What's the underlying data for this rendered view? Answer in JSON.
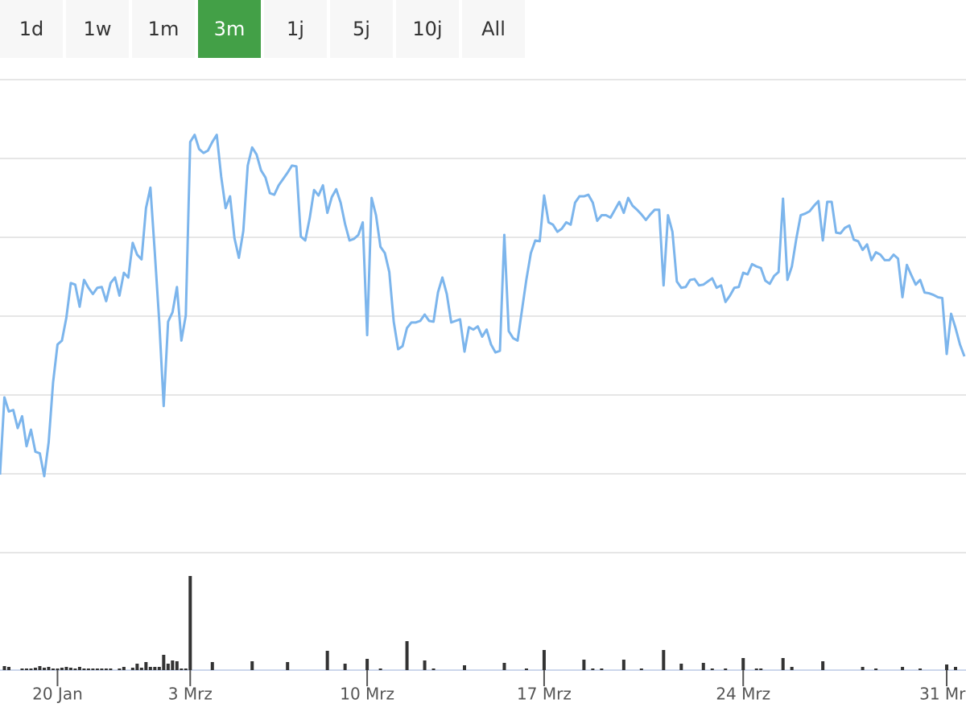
{
  "buttons": [
    {
      "label": "1d",
      "active": false
    },
    {
      "label": "1w",
      "active": false
    },
    {
      "label": "1m",
      "active": false
    },
    {
      "label": "3m",
      "active": true
    },
    {
      "label": "1j",
      "active": false
    },
    {
      "label": "5j",
      "active": false
    },
    {
      "label": "10j",
      "active": false
    },
    {
      "label": "All",
      "active": false
    }
  ],
  "chart_data": [
    {
      "type": "line",
      "xlim": [
        0,
        218
      ],
      "ylim": [
        0,
        6
      ],
      "yticks": [
        0,
        1,
        2,
        3,
        4,
        5,
        6
      ],
      "grid": true,
      "xticks": [
        {
          "value": 13,
          "label": "20 Jan"
        },
        {
          "value": 43,
          "label": "3 Mrz"
        },
        {
          "value": 83,
          "label": "10 Mrz"
        },
        {
          "value": 123,
          "label": "17 Mrz"
        },
        {
          "value": 168,
          "label": "24 Mrz"
        },
        {
          "value": 214,
          "label": "31 Mrz"
        }
      ],
      "series": [
        {
          "color": "#7cb5ec",
          "values": [
            0.99,
            1.97,
            1.79,
            1.81,
            1.58,
            1.73,
            1.35,
            1.56,
            1.28,
            1.26,
            0.97,
            1.4,
            2.16,
            2.64,
            2.69,
            2.98,
            3.42,
            3.4,
            3.12,
            3.46,
            3.36,
            3.28,
            3.36,
            3.37,
            3.19,
            3.42,
            3.49,
            3.26,
            3.55,
            3.49,
            3.93,
            3.78,
            3.72,
            4.37,
            4.63,
            3.8,
            2.93,
            1.86,
            2.93,
            3.05,
            3.37,
            2.69,
            3.01,
            5.21,
            5.3,
            5.12,
            5.07,
            5.1,
            5.21,
            5.3,
            4.77,
            4.37,
            4.52,
            3.99,
            3.74,
            4.08,
            4.91,
            5.14,
            5.05,
            4.85,
            4.76,
            4.56,
            4.54,
            4.66,
            4.74,
            4.82,
            4.91,
            4.9,
            4.01,
            3.96,
            4.24,
            4.6,
            4.53,
            4.66,
            4.31,
            4.51,
            4.61,
            4.44,
            4.17,
            3.96,
            3.98,
            4.03,
            4.19,
            2.76,
            4.5,
            4.28,
            3.88,
            3.8,
            3.56,
            2.93,
            2.58,
            2.62,
            2.85,
            2.92,
            2.92,
            2.94,
            3.02,
            2.94,
            2.93,
            3.3,
            3.49,
            3.28,
            2.92,
            2.94,
            2.96,
            2.55,
            2.86,
            2.83,
            2.87,
            2.74,
            2.83,
            2.64,
            2.54,
            2.56,
            4.03,
            2.81,
            2.72,
            2.69,
            3.08,
            3.47,
            3.8,
            3.96,
            3.95,
            4.53,
            4.19,
            4.16,
            4.07,
            4.11,
            4.19,
            4.16,
            4.44,
            4.52,
            4.52,
            4.54,
            4.44,
            4.21,
            4.28,
            4.28,
            4.25,
            4.35,
            4.45,
            4.31,
            4.5,
            4.4,
            4.35,
            4.29,
            4.22,
            4.29,
            4.35,
            4.35,
            3.39,
            4.28,
            4.07,
            3.44,
            3.36,
            3.37,
            3.46,
            3.47,
            3.39,
            3.4,
            3.44,
            3.48,
            3.36,
            3.39,
            3.18,
            3.26,
            3.36,
            3.37,
            3.55,
            3.53,
            3.66,
            3.63,
            3.61,
            3.45,
            3.41,
            3.51,
            3.56,
            4.49,
            3.46,
            3.63,
            3.98,
            4.28,
            4.3,
            4.33,
            4.4,
            4.46,
            3.96,
            4.45,
            4.45,
            4.06,
            4.05,
            4.12,
            4.15,
            3.97,
            3.95,
            3.84,
            3.91,
            3.71,
            3.81,
            3.78,
            3.71,
            3.71,
            3.78,
            3.73,
            3.24,
            3.65,
            3.52,
            3.4,
            3.46,
            3.3,
            3.29,
            3.27,
            3.24,
            3.23,
            2.52,
            3.03,
            2.85,
            2.64,
            2.49
          ]
        }
      ]
    },
    {
      "type": "bar",
      "color": "#333333",
      "xlim": [
        0,
        218
      ],
      "ylim": [
        0,
        120
      ],
      "x": [
        1,
        2,
        5,
        6,
        7,
        8,
        9,
        10,
        11,
        12,
        13,
        14,
        15,
        16,
        17,
        18,
        19,
        20,
        21,
        22,
        23,
        24,
        25,
        27,
        28,
        30,
        31,
        32,
        33,
        34,
        35,
        36,
        37,
        38,
        39,
        40,
        41,
        42,
        43,
        48,
        57,
        65,
        74,
        78,
        83,
        86,
        92,
        96,
        98,
        105,
        114,
        119,
        123,
        132,
        134,
        136,
        141,
        145,
        150,
        154,
        159,
        161,
        164,
        168,
        171,
        172,
        177,
        179,
        186,
        195,
        198,
        204,
        208,
        214,
        216
      ],
      "values": [
        5,
        4,
        2,
        2,
        2,
        3,
        5,
        3,
        4,
        2,
        2,
        3,
        4,
        3,
        2,
        4,
        2,
        2,
        2,
        2,
        2,
        2,
        2,
        2,
        4,
        3,
        8,
        3,
        10,
        4,
        4,
        4,
        19,
        8,
        12,
        11,
        2,
        2,
        117,
        10,
        11,
        10,
        24,
        8,
        14,
        2,
        36,
        12,
        2,
        6,
        9,
        2,
        25,
        13,
        2,
        2,
        13,
        2,
        25,
        8,
        9,
        2,
        2,
        15,
        2,
        2,
        15,
        4,
        11,
        4,
        2,
        4,
        2,
        7,
        4
      ]
    }
  ]
}
